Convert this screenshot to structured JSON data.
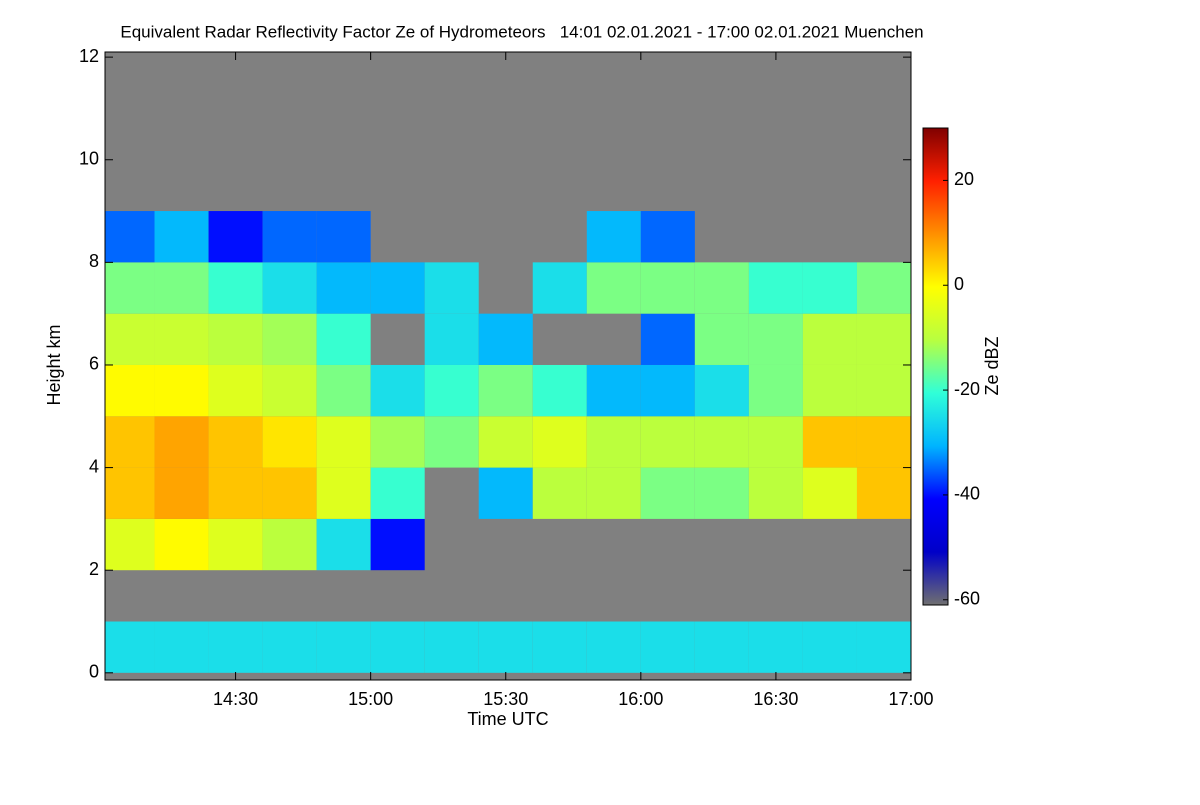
{
  "chart_data": {
    "type": "heatmap",
    "title": "Equivalent Radar Reflectivity Factor Ze of Hydrometeors   14:01 02.01.2021 - 17:00 02.01.2021 Muenchen",
    "x_label": "Time UTC",
    "y_label": "Height km",
    "colorbar_label": "Ze dBZ",
    "x": [
      14.1,
      14.3,
      14.5,
      14.7,
      14.9,
      15.1,
      15.3,
      15.5,
      15.7,
      15.9,
      16.1,
      16.3,
      16.5,
      16.7,
      16.9
    ],
    "y": [
      0.5,
      1.5,
      2.5,
      3.5,
      4.5,
      5.5,
      6.5,
      7.5,
      8.5,
      9.5,
      10.5,
      11.5
    ],
    "z": [
      [
        -25,
        -25,
        -25,
        -25,
        -25,
        -25,
        -25,
        -25,
        -25,
        -25,
        -25,
        -25,
        -25,
        -25,
        -25
      ],
      [
        null,
        null,
        null,
        null,
        null,
        null,
        null,
        null,
        null,
        null,
        null,
        null,
        null,
        null,
        null
      ],
      [
        -5,
        0,
        -5,
        -10,
        -25,
        -40,
        null,
        null,
        null,
        null,
        null,
        null,
        null,
        null,
        null
      ],
      [
        5,
        8,
        5,
        5,
        -5,
        -20,
        null,
        -30,
        -10,
        -10,
        -15,
        -15,
        -10,
        -5,
        5
      ],
      [
        5,
        8,
        5,
        2,
        -5,
        -12,
        -15,
        -8,
        -5,
        -10,
        -10,
        -10,
        -10,
        5,
        5
      ],
      [
        0,
        0,
        -5,
        -8,
        -15,
        -25,
        -20,
        -15,
        -20,
        -30,
        -30,
        -25,
        -15,
        -10,
        -10
      ],
      [
        -8,
        -8,
        -10,
        -12,
        -20,
        null,
        -25,
        -30,
        null,
        null,
        -35,
        -15,
        -15,
        -10,
        -10
      ],
      [
        -15,
        -15,
        -20,
        -25,
        -30,
        -30,
        -25,
        null,
        -25,
        -15,
        -15,
        -15,
        -20,
        -20,
        -15
      ],
      [
        -35,
        -30,
        -40,
        -35,
        -35,
        null,
        null,
        null,
        null,
        -30,
        -35,
        null,
        null,
        null,
        null
      ],
      [
        null,
        null,
        null,
        null,
        null,
        null,
        null,
        null,
        null,
        null,
        null,
        null,
        null,
        null,
        null
      ],
      [
        null,
        null,
        null,
        null,
        null,
        null,
        null,
        null,
        null,
        null,
        null,
        null,
        null,
        null,
        null
      ],
      [
        null,
        null,
        null,
        null,
        null,
        null,
        null,
        null,
        null,
        null,
        null,
        null,
        null,
        null,
        null
      ]
    ],
    "xlim": [
      14.0167,
      17.0
    ],
    "xticks": [
      {
        "value": 14.5,
        "label": "14:30"
      },
      {
        "value": 15.0,
        "label": "15:00"
      },
      {
        "value": 15.5,
        "label": "15:30"
      },
      {
        "value": 16.0,
        "label": "16:00"
      },
      {
        "value": 16.5,
        "label": "16:30"
      },
      {
        "value": 17.0,
        "label": "17:00"
      }
    ],
    "ylim": [
      -0.14,
      12.1
    ],
    "yticks": [
      0,
      2,
      4,
      6,
      8,
      10,
      12
    ],
    "clim": [
      -61,
      30
    ],
    "cticks": [
      -60,
      -40,
      -20,
      0,
      20
    ],
    "colorscale": [
      "#707070",
      "#0000c8",
      "#0000ff",
      "#00b4ff",
      "#30ffd8",
      "#b8ff40",
      "#ffff00",
      "#ff9000",
      "#ff2000",
      "#800000"
    ],
    "no_data_color": "#808080"
  }
}
